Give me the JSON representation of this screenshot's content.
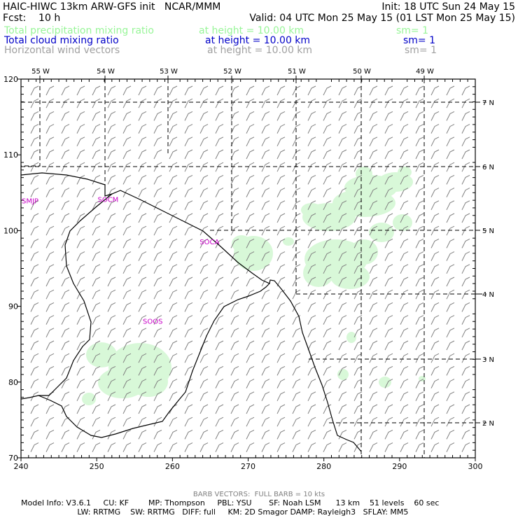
{
  "header": {
    "title_left": "HAIC-HIWC 13km ARW-GFS init   NCAR/MMM",
    "init": "Init: 18 UTC Sun 24 May 15",
    "fcst": "Fcst:    10 h",
    "valid": "Valid: 04 UTC Mon 25 May 15 (01 LST Mon 25 May 15)",
    "fields": [
      {
        "name": "Total precipitation mixing ratio",
        "height": "at height = 10.00 km",
        "sm": "sm= 1",
        "color": "#98f598"
      },
      {
        "name": "Total cloud mixing ratio",
        "height": "at height = 10.00 km",
        "sm": "sm= 1",
        "color": "#0000c8"
      },
      {
        "name": "Horizontal wind vectors",
        "height": "at height = 10.00 km",
        "sm": "sm= 1",
        "color": "#a0a0a0"
      }
    ]
  },
  "map": {
    "lon_labels": [
      "55 W",
      "54 W",
      "53 W",
      "52 W",
      "51 W",
      "50 W",
      "49 W"
    ],
    "lat_labels": [
      "7 N",
      "6 N",
      "5 N",
      "4 N",
      "3 N",
      "2 N"
    ],
    "x_ticks": [
      "240",
      "250",
      "260",
      "270",
      "280",
      "290",
      "300"
    ],
    "y_ticks": [
      "120",
      "110",
      "100",
      "90",
      "80",
      "70"
    ],
    "x_range": [
      240,
      300
    ],
    "y_range": [
      70,
      120
    ],
    "stations": [
      {
        "id": "SMJP",
        "x": 241.2,
        "y": 103.6
      },
      {
        "id": "SOCM",
        "x": 251.5,
        "y": 103.8
      },
      {
        "id": "SOCA",
        "x": 264.9,
        "y": 98.2
      },
      {
        "id": "SOOS",
        "x": 257.4,
        "y": 87.7
      }
    ],
    "station_color": "#c800c8",
    "precip_color": "#d8f8d8",
    "barb_color": "#808080"
  },
  "footer": {
    "barb": "BARB VECTORS:  FULL BARB = 10 kts",
    "line1": "Model Info: V3.6.1     CU: KF        MP: Thompson     PBL: YSU       SF: Noah LSM      13 km    51 levels    60 sec",
    "line2": "                       LW: RRTMG    SW: RRTMG   DIFF: full     KM: 2D Smagor DAMP: Rayleigh3   SFLAY: MM5"
  }
}
